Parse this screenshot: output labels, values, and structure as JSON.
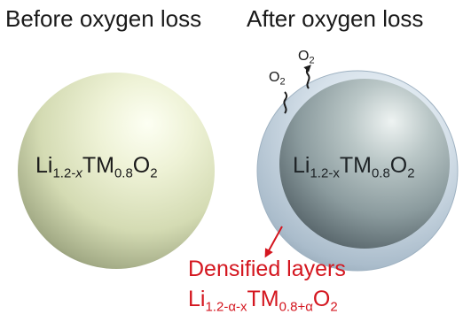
{
  "panels": {
    "before": {
      "title": "Before oxygen loss",
      "formula": {
        "element1": "Li",
        "sub1_prefix": "1.2-",
        "sub1_var": "x",
        "element2": "TM",
        "sub2": "0.8",
        "element3": "O",
        "sub3": "2"
      }
    },
    "after": {
      "title": "After oxygen loss",
      "formula": {
        "element1": "Li",
        "sub1": "1.2-x",
        "element2": "TM",
        "sub2": "0.8",
        "element3": "O",
        "sub3": "2"
      },
      "released_gas": [
        {
          "element": "O",
          "sub": "2"
        },
        {
          "element": "O",
          "sub": "2"
        }
      ]
    }
  },
  "annotation": {
    "label": "Densified layers",
    "formula": {
      "element1": "Li",
      "sub1": "1.2-α-x",
      "element2": "TM",
      "sub2": "0.8+α",
      "element3": "O",
      "sub3": "2"
    },
    "color": "#d4161f"
  },
  "colors": {
    "pristine_sphere": "#e7ebcc",
    "densified_shell": "#c5d4e0",
    "core_sphere": "#8fa0a4",
    "arrow": "#d4161f"
  }
}
